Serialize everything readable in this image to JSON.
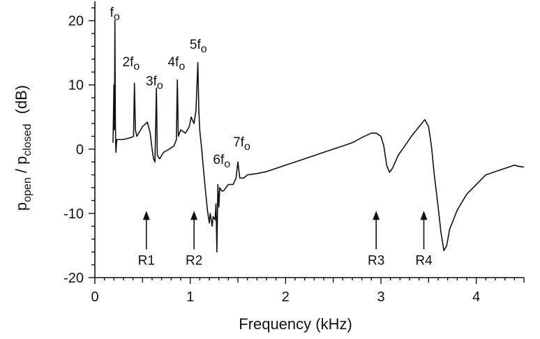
{
  "chart_data": {
    "type": "line",
    "title": "",
    "xlabel": "Frequency (kHz)",
    "ylabel": {
      "p1": "p",
      "s1": "open",
      "sep": " / p",
      "s2": "closed",
      "unit": "(dB)"
    },
    "xlim": [
      0,
      4.5
    ],
    "ylim": [
      -20,
      23
    ],
    "xticks": [
      0,
      1,
      2,
      3,
      4
    ],
    "xtick_labels": [
      "0",
      "1",
      "2",
      "3",
      "4"
    ],
    "yticks": [
      -20,
      -10,
      0,
      10,
      20
    ],
    "ytick_labels": [
      "-20",
      "-10",
      "0",
      "10",
      "20"
    ],
    "grid": false,
    "series": [
      {
        "points": [
          [
            0.19,
            1.0
          ],
          [
            0.2,
            10.0
          ],
          [
            0.205,
            3.0
          ],
          [
            0.21,
            20.0
          ],
          [
            0.215,
            4.0
          ],
          [
            0.22,
            -0.5
          ],
          [
            0.23,
            1.5
          ],
          [
            0.3,
            1.5
          ],
          [
            0.38,
            1.8
          ],
          [
            0.405,
            2.0
          ],
          [
            0.415,
            10.3
          ],
          [
            0.425,
            3.0
          ],
          [
            0.44,
            2.0
          ],
          [
            0.5,
            3.5
          ],
          [
            0.55,
            4.2
          ],
          [
            0.58,
            2.5
          ],
          [
            0.6,
            0.0
          ],
          [
            0.615,
            -1.5
          ],
          [
            0.63,
            -2.0
          ],
          [
            0.645,
            9.5
          ],
          [
            0.655,
            -1.0
          ],
          [
            0.68,
            -1.5
          ],
          [
            0.72,
            -0.5
          ],
          [
            0.78,
            0.0
          ],
          [
            0.83,
            0.5
          ],
          [
            0.855,
            1.5
          ],
          [
            0.865,
            10.8
          ],
          [
            0.875,
            2.0
          ],
          [
            0.9,
            3.0
          ],
          [
            0.95,
            2.5
          ],
          [
            0.99,
            3.5
          ],
          [
            1.01,
            5.0
          ],
          [
            1.04,
            4.0
          ],
          [
            1.06,
            6.0
          ],
          [
            1.08,
            13.5
          ],
          [
            1.09,
            6.0
          ],
          [
            1.1,
            3.0
          ],
          [
            1.12,
            0.0
          ],
          [
            1.15,
            -5.0
          ],
          [
            1.18,
            -9.5
          ],
          [
            1.2,
            -11.5
          ],
          [
            1.21,
            -10.0
          ],
          [
            1.23,
            -12.0
          ],
          [
            1.24,
            -10.5
          ],
          [
            1.26,
            -11.0
          ],
          [
            1.27,
            -8.5
          ],
          [
            1.28,
            -16.0
          ],
          [
            1.29,
            -5.5
          ],
          [
            1.3,
            -9.0
          ],
          [
            1.31,
            -6.0
          ],
          [
            1.33,
            -6.5
          ],
          [
            1.35,
            -6.5
          ],
          [
            1.4,
            -5.5
          ],
          [
            1.45,
            -5.5
          ],
          [
            1.48,
            -4.5
          ],
          [
            1.5,
            -2.0
          ],
          [
            1.52,
            -4.5
          ],
          [
            1.56,
            -4.5
          ],
          [
            1.6,
            -4.0
          ],
          [
            1.7,
            -3.8
          ],
          [
            1.8,
            -3.5
          ],
          [
            1.9,
            -3.0
          ],
          [
            2.0,
            -2.5
          ],
          [
            2.1,
            -2.0
          ],
          [
            2.2,
            -1.5
          ],
          [
            2.3,
            -1.0
          ],
          [
            2.4,
            -0.5
          ],
          [
            2.5,
            0.0
          ],
          [
            2.6,
            0.5
          ],
          [
            2.7,
            1.0
          ],
          [
            2.8,
            1.8
          ],
          [
            2.9,
            2.5
          ],
          [
            2.95,
            2.5
          ],
          [
            3.0,
            2.0
          ],
          [
            3.03,
            0.5
          ],
          [
            3.06,
            -2.5
          ],
          [
            3.09,
            -3.6
          ],
          [
            3.12,
            -3.0
          ],
          [
            3.18,
            -1.0
          ],
          [
            3.25,
            0.5
          ],
          [
            3.32,
            2.0
          ],
          [
            3.4,
            3.5
          ],
          [
            3.46,
            4.6
          ],
          [
            3.5,
            3.5
          ],
          [
            3.53,
            0.5
          ],
          [
            3.56,
            -4.0
          ],
          [
            3.6,
            -9.0
          ],
          [
            3.63,
            -13.0
          ],
          [
            3.66,
            -15.8
          ],
          [
            3.69,
            -15.0
          ],
          [
            3.72,
            -12.5
          ],
          [
            3.8,
            -9.5
          ],
          [
            3.9,
            -7.0
          ],
          [
            4.0,
            -5.5
          ],
          [
            4.1,
            -4.0
          ],
          [
            4.2,
            -3.5
          ],
          [
            4.3,
            -3.0
          ],
          [
            4.4,
            -2.5
          ],
          [
            4.45,
            -2.7
          ],
          [
            4.5,
            -2.8
          ]
        ]
      }
    ],
    "harmonic_labels": [
      {
        "base": "f",
        "sub": "o",
        "x": 0.21,
        "y": 20.6
      },
      {
        "base": "2f",
        "sub": "o",
        "x": 0.38,
        "y": 12.9
      },
      {
        "base": "3f",
        "sub": "o",
        "x": 0.625,
        "y": 9.9
      },
      {
        "base": "4f",
        "sub": "o",
        "x": 0.855,
        "y": 12.9
      },
      {
        "base": "5f",
        "sub": "o",
        "x": 1.085,
        "y": 15.6
      },
      {
        "base": "6f",
        "sub": "o",
        "x": 1.33,
        "y": -2.3
      },
      {
        "base": "7f",
        "sub": "o",
        "x": 1.54,
        "y": 0.4
      }
    ],
    "resonance_markers": [
      {
        "label": "R1",
        "x": 0.54,
        "y_bottom": -15.6,
        "y_top": -9.6
      },
      {
        "label": "R2",
        "x": 1.04,
        "y_bottom": -15.6,
        "y_top": -9.6
      },
      {
        "label": "R3",
        "x": 2.95,
        "y_bottom": -15.6,
        "y_top": -9.6
      },
      {
        "label": "R4",
        "x": 3.45,
        "y_bottom": -15.6,
        "y_top": -9.6
      }
    ]
  }
}
